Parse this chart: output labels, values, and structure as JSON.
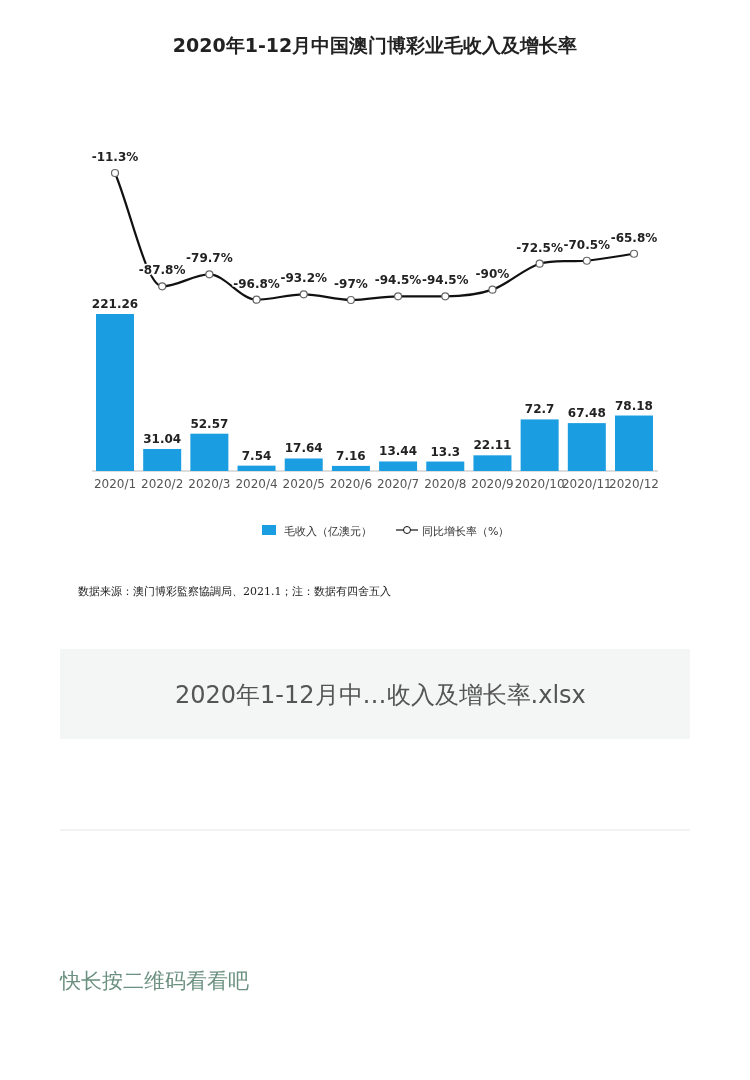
{
  "chart_data": [
    {
      "type": "line",
      "title": "2020年1-12月中国澳门博彩业毛收入及增长率",
      "categories": [
        null,
        null,
        null,
        null,
        null,
        null,
        null,
        null,
        null,
        null,
        null,
        null
      ],
      "marker": "circle",
      "legend": "bottom",
      "series": [
        {
          "name": "同比增长率（%）",
          "color": "#111111",
          "values": [
            -11.3,
            -87.8,
            -79.7,
            -96.8,
            -93.2,
            -97,
            -94.5,
            -94.5,
            -90,
            -72.5,
            -70.5,
            -65.8
          ],
          "value_labels": [
            "-11.3%",
            "-87.8%",
            "-79.7%",
            "-96.8%",
            "-93.2%",
            "-97%",
            "-94.5%",
            "-94.5%",
            "-90%",
            "-72.5%",
            "-70.5%",
            "-65.8%"
          ]
        }
      ]
    },
    {
      "type": "bar",
      "categories": [
        "2020/1",
        "2020/2",
        "2020/3",
        "2020/4",
        "2020/5",
        "2020/6",
        "2020/7",
        "2020/8",
        "2020/9",
        "2020/10",
        "2020/11",
        "2020/12"
      ],
      "series": [
        {
          "name": "毛收入（亿澳元）",
          "color": "#1b9de2",
          "values": [
            221.26,
            31.04,
            52.57,
            7.54,
            17.64,
            7.16,
            13.44,
            13.3,
            22.11,
            72.7,
            67.48,
            78.18
          ]
        }
      ],
      "data_labels": true,
      "legend": "bottom",
      "annotations": [
        "数据来源：澳门博彩監察協調局、2021.1；注：数据有四舍五入",
        "2020年1-12月中…收入及增长率.xlsx",
        "快长按二维码看看吧"
      ]
    }
  ]
}
